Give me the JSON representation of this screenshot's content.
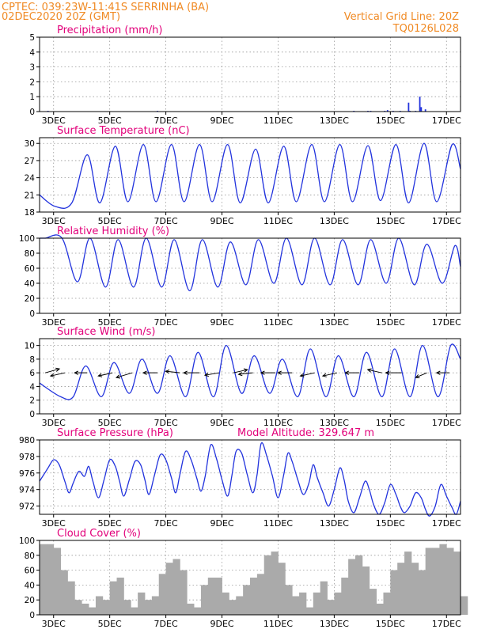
{
  "header": {
    "line1": "CPTEC:   039:23W-11:41S   SERRINHA (BA)",
    "line2": "02DEC2020 20Z (GMT)",
    "right1": "Vertical Grid Line: 20Z",
    "right2": "TQ0126L028"
  },
  "colors": {
    "line": "#2233dd",
    "title": "#e2007a",
    "header": "#f08a24",
    "cloud": "#aaaaaa",
    "arrow": "#000000",
    "grid": "#999999"
  },
  "chart_data": [
    {
      "type": "bar",
      "title": "Precipitation (mm/h)",
      "ylim": [
        0,
        5
      ],
      "yticks": [
        "0",
        "1",
        "2",
        "3",
        "4",
        "5"
      ],
      "xticks": [
        "3DEC",
        "5DEC",
        "7DEC",
        "9DEC",
        "11DEC",
        "13DEC",
        "15DEC",
        "17DEC"
      ],
      "x_days": [
        0.3,
        4.2,
        11.2,
        11.7,
        11.8,
        12.3,
        12.4,
        12.6,
        12.85,
        13.15,
        13.2,
        13.4,
        13.55,
        13.6,
        13.75
      ],
      "values": [
        0.05,
        0.05,
        0.05,
        0.05,
        0.05,
        0.05,
        0.1,
        0.05,
        0.05,
        0.6,
        0.05,
        0.05,
        1.0,
        0.3,
        0.15
      ]
    },
    {
      "type": "line",
      "title": "Surface Temperature (nC)",
      "ylim": [
        18,
        31
      ],
      "yticks": [
        "18",
        "21",
        "24",
        "27",
        "30"
      ],
      "xticks": [
        "3DEC",
        "5DEC",
        "7DEC",
        "9DEC",
        "11DEC",
        "13DEC",
        "15DEC",
        "17DEC"
      ],
      "cycle_start": 0.8,
      "peak_offset": 0.9,
      "trough_offset": 0.35,
      "start_value": 21.0,
      "first_trough": 19.0,
      "maxima": [
        28.0,
        29.5,
        29.8,
        29.8,
        29.8,
        29.8,
        29.0,
        29.5,
        29.8,
        29.8,
        29.6,
        29.8,
        30.0,
        29.8,
        29.8,
        30.5
      ],
      "minima": [
        19.6,
        19.6,
        19.8,
        19.8,
        19.8,
        19.8,
        19.6,
        19.6,
        19.8,
        19.8,
        19.8,
        20.0,
        19.6,
        19.8,
        19.6
      ],
      "end_value": 25.5
    },
    {
      "type": "line",
      "title": "Relative Humidity (%)",
      "ylim": [
        0,
        100
      ],
      "yticks": [
        "0",
        "20",
        "40",
        "60",
        "80",
        "100"
      ],
      "xticks": [
        "3DEC",
        "5DEC",
        "7DEC",
        "9DEC",
        "11DEC",
        "13DEC",
        "15DEC",
        "17DEC"
      ],
      "cycle_start": 0.45,
      "peak_offset": 0.35,
      "trough_offset": 0.9,
      "start_value": 100,
      "first_trough": 100,
      "minima": [
        42,
        35,
        35,
        35,
        30,
        35,
        38,
        40,
        38,
        38,
        38,
        40,
        38,
        40,
        48,
        38
      ],
      "maxima": [
        100,
        100,
        98,
        100,
        98,
        98,
        95,
        98,
        100,
        100,
        98,
        98,
        100,
        92,
        90
      ],
      "end_value": 62
    },
    {
      "type": "line",
      "title": "Surface Wind (m/s)",
      "ylim": [
        0,
        11
      ],
      "yticks": [
        "0",
        "2",
        "4",
        "6",
        "8",
        "10"
      ],
      "xticks": [
        "3DEC",
        "5DEC",
        "7DEC",
        "9DEC",
        "11DEC",
        "13DEC",
        "15DEC",
        "17DEC"
      ],
      "cycle_start": 1.0,
      "peak_offset": 0.65,
      "trough_offset": 0.2,
      "start_value": 4.5,
      "first_trough": 2.5,
      "maxima": [
        7.0,
        7.5,
        8.0,
        8.5,
        9.0,
        10.0,
        8.5,
        8.0,
        9.5,
        8.5,
        9.0,
        9.5,
        10.0,
        10.0,
        9.0
      ],
      "minima": [
        2.5,
        2.5,
        3.0,
        3.0,
        2.5,
        2.5,
        3.0,
        3.0,
        2.5,
        2.5,
        2.5,
        2.5,
        2.5,
        2.5
      ],
      "end_value": 8.0,
      "arrows": [
        {
          "day": 0.2,
          "dx": 18,
          "dy": -5
        },
        {
          "day": 0.9,
          "dx": -18,
          "dy": 4
        },
        {
          "day": 1.7,
          "dx": -16,
          "dy": 0
        },
        {
          "day": 2.6,
          "dx": -18,
          "dy": 4
        },
        {
          "day": 3.3,
          "dx": -20,
          "dy": 6
        },
        {
          "day": 4.2,
          "dx": -18,
          "dy": 0
        },
        {
          "day": 5.0,
          "dx": -18,
          "dy": -2
        },
        {
          "day": 5.7,
          "dx": -20,
          "dy": 0
        },
        {
          "day": 6.4,
          "dx": -18,
          "dy": 3
        },
        {
          "day": 6.9,
          "dx": 18,
          "dy": -4
        },
        {
          "day": 7.6,
          "dx": -18,
          "dy": 2
        },
        {
          "day": 8.4,
          "dx": -18,
          "dy": 0
        },
        {
          "day": 9.0,
          "dx": -18,
          "dy": 0
        },
        {
          "day": 9.8,
          "dx": -18,
          "dy": 4
        },
        {
          "day": 10.6,
          "dx": -18,
          "dy": 4
        },
        {
          "day": 11.4,
          "dx": -18,
          "dy": 0
        },
        {
          "day": 12.2,
          "dx": -18,
          "dy": -4
        },
        {
          "day": 12.9,
          "dx": -20,
          "dy": 0
        },
        {
          "day": 13.8,
          "dx": -14,
          "dy": 6
        },
        {
          "day": 14.6,
          "dx": -16,
          "dy": 0
        }
      ]
    },
    {
      "type": "line",
      "title": "Surface Pressure (hPa)",
      "annotation": "Model Altitude: 329.647 m",
      "ylim": [
        971,
        980
      ],
      "yticks": [
        "972",
        "974",
        "976",
        "978",
        "980"
      ],
      "xticks": [
        "3DEC",
        "5DEC",
        "7DEC",
        "9DEC",
        "11DEC",
        "13DEC",
        "15DEC",
        "17DEC"
      ],
      "x_days": [
        0,
        0.15,
        0.3,
        0.5,
        0.7,
        0.9,
        1.05,
        1.2,
        1.4,
        1.6,
        1.75,
        1.9,
        2.1,
        2.3,
        2.5,
        2.7,
        2.85,
        3.0,
        3.2,
        3.4,
        3.6,
        3.75,
        3.9,
        4.1,
        4.3,
        4.5,
        4.7,
        4.85,
        5.0,
        5.2,
        5.4,
        5.6,
        5.75,
        5.9,
        6.1,
        6.3,
        6.5,
        6.7,
        6.85,
        7.0,
        7.2,
        7.4,
        7.6,
        7.75,
        7.9,
        8.1,
        8.3,
        8.5,
        8.7,
        8.85,
        9.0,
        9.2,
        9.4,
        9.6,
        9.75,
        9.9,
        10.1,
        10.3,
        10.5,
        10.7,
        10.85,
        11.0,
        11.2,
        11.4,
        11.6,
        11.75,
        11.9,
        12.1,
        12.3,
        12.5,
        12.7,
        12.85,
        13.0,
        13.2,
        13.4,
        13.6,
        13.75,
        13.9,
        14.1,
        14.3,
        14.5,
        14.7,
        14.85,
        15.0
      ],
      "values": [
        975.0,
        975.8,
        976.6,
        977.6,
        977.0,
        975.0,
        973.6,
        974.8,
        976.2,
        975.6,
        976.8,
        975.0,
        973.0,
        975.2,
        977.6,
        976.8,
        975.0,
        973.2,
        975.2,
        977.4,
        977.0,
        975.2,
        973.4,
        975.8,
        978.2,
        977.6,
        975.4,
        973.6,
        975.8,
        978.6,
        977.6,
        975.4,
        973.8,
        975.6,
        979.4,
        977.8,
        975.2,
        973.2,
        975.6,
        978.6,
        978.4,
        975.8,
        973.6,
        975.8,
        979.6,
        978.0,
        975.6,
        973.0,
        975.8,
        978.4,
        977.4,
        975.2,
        973.4,
        974.8,
        977.0,
        975.4,
        973.6,
        972.0,
        974.0,
        976.6,
        975.2,
        972.6,
        971.2,
        973.0,
        975.0,
        974.0,
        972.2,
        971.0,
        972.4,
        974.6,
        973.4,
        972.0,
        971.2,
        972.0,
        973.6,
        973.0,
        971.6,
        970.8,
        972.0,
        974.6,
        973.2,
        971.8,
        971.0,
        972.6
      ]
    },
    {
      "type": "bar",
      "title": "Cloud Cover (%)",
      "ylim": [
        0,
        100
      ],
      "yticks": [
        "0",
        "20",
        "40",
        "60",
        "80",
        "100"
      ],
      "xticks": [
        "3DEC",
        "5DEC",
        "7DEC",
        "9DEC",
        "11DEC",
        "13DEC",
        "15DEC",
        "17DEC"
      ],
      "x_days": [
        0,
        0.25,
        0.5,
        0.75,
        1.0,
        1.25,
        1.5,
        1.75,
        2.0,
        2.25,
        2.5,
        2.75,
        3.0,
        3.25,
        3.5,
        3.75,
        4.0,
        4.25,
        4.5,
        4.75,
        5.0,
        5.25,
        5.5,
        5.75,
        6.0,
        6.25,
        6.5,
        6.75,
        7.0,
        7.25,
        7.5,
        7.75,
        8.0,
        8.25,
        8.5,
        8.75,
        9.0,
        9.25,
        9.5,
        9.75,
        10.0,
        10.25,
        10.5,
        10.75,
        11.0,
        11.25,
        11.5,
        11.75,
        12.0,
        12.25,
        12.5,
        12.75,
        13.0,
        13.25,
        13.5,
        13.75,
        14.0,
        14.25,
        14.5,
        14.75,
        15.0
      ],
      "values": [
        95,
        95,
        90,
        60,
        45,
        20,
        15,
        10,
        25,
        20,
        45,
        50,
        20,
        10,
        30,
        20,
        25,
        55,
        70,
        75,
        60,
        15,
        10,
        40,
        50,
        50,
        30,
        20,
        25,
        40,
        50,
        55,
        80,
        85,
        70,
        40,
        25,
        30,
        10,
        30,
        45,
        20,
        30,
        50,
        75,
        80,
        65,
        35,
        15,
        30,
        60,
        70,
        85,
        70,
        60,
        90,
        90,
        95,
        90,
        85,
        25
      ]
    }
  ]
}
